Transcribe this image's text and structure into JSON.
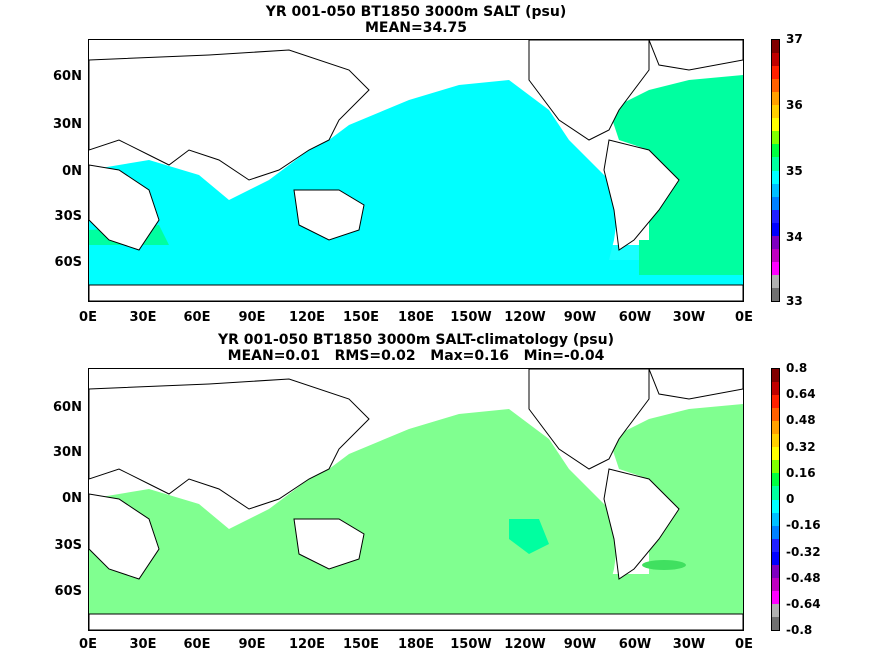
{
  "panel1": {
    "title_line1": "YR 001-050 BT1850 3000m SALT (psu)",
    "title_line2": "MEAN=34.75",
    "colorbar_labels": [
      "37",
      "36",
      "35",
      "34",
      "33"
    ],
    "colorbar_colors": [
      "#707070",
      "#b0b0b0",
      "#ff00ff",
      "#c000c0",
      "#8000c0",
      "#0000ff",
      "#2020ff",
      "#0080ff",
      "#00c0ff",
      "#00ffff",
      "#00ffa0",
      "#00ff40",
      "#80ff00",
      "#ffff00",
      "#ffd000",
      "#ffa000",
      "#ff6000",
      "#ff2000",
      "#c00000",
      "#800000"
    ]
  },
  "panel2": {
    "title_line1": "YR 001-050 BT1850 3000m SALT-climatology (psu)",
    "title_line2": "MEAN=0.01   RMS=0.02   Max=0.16   Min=-0.04",
    "colorbar_labels": [
      "0.8",
      "0.64",
      "0.48",
      "0.32",
      "0.16",
      "0",
      "-0.16",
      "-0.32",
      "-0.48",
      "-0.64",
      "-0.8"
    ],
    "colorbar_colors": [
      "#707070",
      "#b0b0b0",
      "#ff00ff",
      "#c000c0",
      "#8000c0",
      "#0000ff",
      "#2020ff",
      "#0080ff",
      "#00c0ff",
      "#00ffff",
      "#00ffa0",
      "#00ff40",
      "#80ff00",
      "#ffff00",
      "#ffd000",
      "#ffa000",
      "#ff6000",
      "#ff2000",
      "#c00000",
      "#800000"
    ]
  },
  "lat_labels": [
    "60N",
    "30N",
    "0N",
    "30S",
    "60S"
  ],
  "lon_labels": [
    "0E",
    "30E",
    "60E",
    "90E",
    "120E",
    "150E",
    "180E",
    "150W",
    "120W",
    "90W",
    "60W",
    "30W",
    "0E"
  ],
  "colors": {
    "ocean_fill_top": "#00ffff",
    "atlantic_fill_top": "#00ffa0",
    "anomaly_fill": "#80ff90",
    "coast": "#000000",
    "land": "#ffffff"
  }
}
